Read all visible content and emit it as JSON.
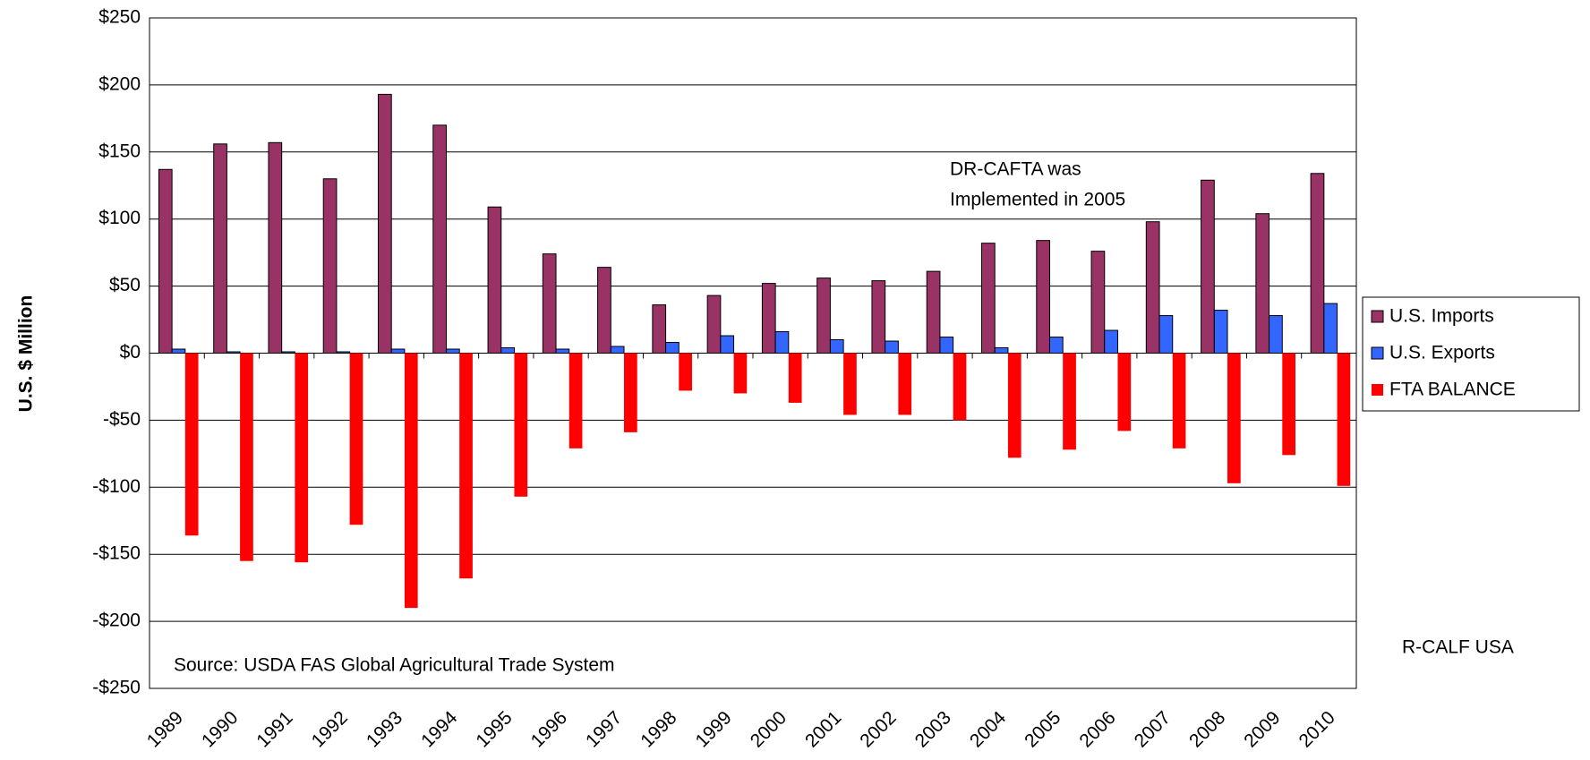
{
  "chart_data": {
    "type": "bar",
    "y_label": "U.S. $ Million",
    "categories": [
      "1989",
      "1990",
      "1991",
      "1992",
      "1993",
      "1994",
      "1995",
      "1996",
      "1997",
      "1998",
      "1999",
      "2000",
      "2001",
      "2002",
      "2003",
      "2004",
      "2005",
      "2006",
      "2007",
      "2008",
      "2009",
      "2010"
    ],
    "series": [
      {
        "name": "U.S. Imports",
        "color": "#993366",
        "values": [
          137,
          156,
          157,
          130,
          193,
          170,
          109,
          74,
          64,
          36,
          43,
          52,
          56,
          54,
          61,
          82,
          84,
          76,
          98,
          129,
          104,
          134
        ]
      },
      {
        "name": "U.S. Exports",
        "color": "#3366ff",
        "values": [
          3,
          1,
          1,
          1,
          3,
          3,
          4,
          3,
          5,
          8,
          13,
          16,
          10,
          9,
          12,
          4,
          12,
          17,
          28,
          32,
          28,
          37
        ]
      },
      {
        "name": "FTA BALANCE",
        "color": "#ff0000",
        "values": [
          -136,
          -155,
          -156,
          -128,
          -190,
          -168,
          -107,
          -71,
          -59,
          -28,
          -30,
          -37,
          -46,
          -46,
          -50,
          -78,
          -72,
          -58,
          -71,
          -97,
          -76,
          -99
        ]
      }
    ],
    "ylim": [
      -250,
      250
    ],
    "yticks": [
      {
        "value": -250,
        "label": "-$250"
      },
      {
        "value": -200,
        "label": "-$200"
      },
      {
        "value": -150,
        "label": "-$150"
      },
      {
        "value": -100,
        "label": "-$100"
      },
      {
        "value": -50,
        "label": "-$50"
      },
      {
        "value": 0,
        "label": "$0"
      },
      {
        "value": 50,
        "label": "$50"
      },
      {
        "value": 100,
        "label": "$100"
      },
      {
        "value": 150,
        "label": "$150"
      },
      {
        "value": 200,
        "label": "$200"
      },
      {
        "value": 250,
        "label": "$250"
      }
    ],
    "grid": true,
    "legend": "right",
    "annotation": [
      "DR-CAFTA was",
      "Implemented in 2005"
    ],
    "source": "Source: USDA FAS Global Agricultural Trade System",
    "credit": "R-CALF USA"
  }
}
